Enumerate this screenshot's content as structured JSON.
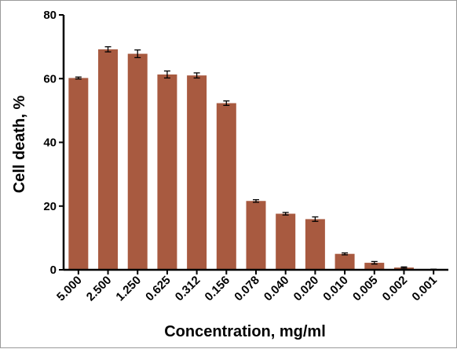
{
  "chart_data": {
    "type": "bar",
    "title": "",
    "xlabel": "Concentration, mg/ml",
    "ylabel": "Cell death, %",
    "ylim": [
      0,
      80
    ],
    "yticks": [
      "0",
      "20",
      "40",
      "60",
      "80"
    ],
    "categories": [
      "5.000",
      "2.500",
      "1.250",
      "0.625",
      "0.312",
      "0.156",
      "0.078",
      "0.040",
      "0.020",
      "0.010",
      "0.005",
      "0.002",
      "0.001"
    ],
    "values": [
      60.2,
      69.2,
      67.8,
      61.3,
      61.0,
      52.3,
      21.6,
      17.6,
      15.9,
      5.0,
      2.2,
      0.7,
      0.1
    ],
    "errors": [
      0.3,
      0.8,
      1.2,
      1.1,
      0.8,
      0.7,
      0.4,
      0.4,
      0.7,
      0.3,
      0.4,
      0.2,
      0.1
    ],
    "bar_color": "#a85a40",
    "grid": false,
    "legend": "none"
  }
}
